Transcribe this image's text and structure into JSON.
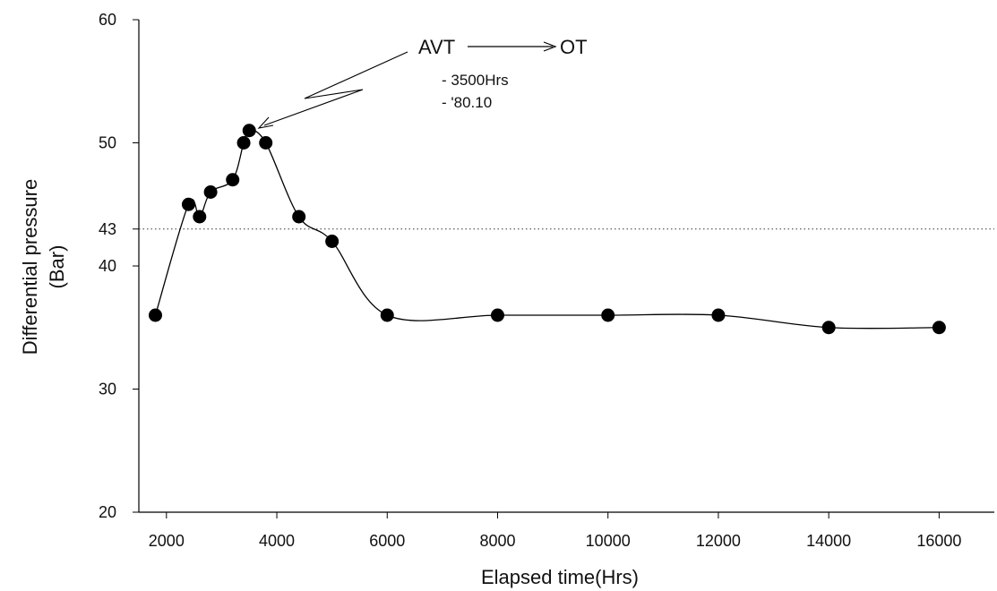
{
  "chart_data": {
    "type": "line",
    "xlabel": "Elapsed time(Hrs)",
    "ylabel": [
      "Differential pressure",
      "(Bar)"
    ],
    "xlim": [
      1500,
      17000
    ],
    "ylim": [
      20,
      60
    ],
    "xticks": [
      2000,
      4000,
      6000,
      8000,
      10000,
      12000,
      14000,
      16000
    ],
    "yticks": [
      20,
      30,
      40,
      43,
      50,
      60
    ],
    "grid": false,
    "reference_line": {
      "y": 43,
      "style": "dotted"
    },
    "series": [
      {
        "marker": "filled-circle",
        "color": "#000000",
        "x": [
          1800,
          2400,
          2600,
          2800,
          3200,
          3400,
          3500,
          3800,
          4400,
          5000,
          6000,
          8000,
          10000,
          12000,
          14000,
          16000
        ],
        "y": [
          36,
          45,
          44,
          46,
          47,
          50,
          51,
          50,
          44,
          42,
          36,
          36,
          36,
          36,
          35,
          35
        ]
      }
    ],
    "annotations": {
      "from": "AVT",
      "to": "OT",
      "lines": [
        "- 3500Hrs",
        "- '80.10"
      ],
      "points_to": {
        "x": 3500,
        "y": 51
      }
    }
  }
}
